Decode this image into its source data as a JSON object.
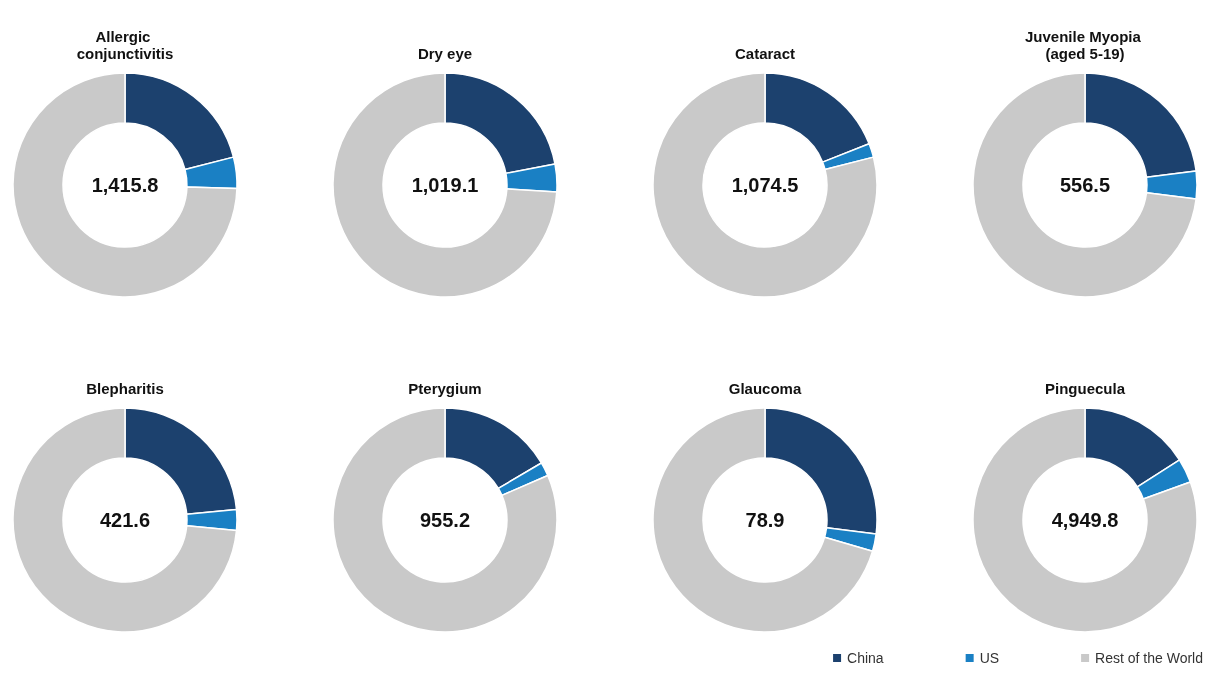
{
  "chart_data": [
    {
      "type": "donut",
      "title": "Allergic conjunctivitis",
      "categories": [
        null,
        null,
        null
      ],
      "values": [
        21,
        4.5,
        74.5
      ],
      "colors": [
        "#1c416e",
        "#1a80c4",
        "#c9c9c9"
      ],
      "annotations": [
        "1,415.8"
      ],
      "legend": false
    },
    {
      "type": "donut",
      "title": "Dry eye",
      "categories": [
        null,
        null,
        null
      ],
      "values": [
        22,
        4,
        74
      ],
      "colors": [
        "#1c416e",
        "#1a80c4",
        "#c9c9c9"
      ],
      "annotations": [
        "1,019.1"
      ],
      "legend": false
    },
    {
      "type": "donut",
      "title": "Cataract",
      "categories": [
        null,
        null,
        null
      ],
      "values": [
        19,
        2,
        79
      ],
      "colors": [
        "#1c416e",
        "#1a80c4",
        "#c9c9c9"
      ],
      "annotations": [
        "1,074.5"
      ],
      "legend": false
    },
    {
      "type": "donut",
      "title": "Juvenile Myopia (aged 5-19)",
      "categories": [
        null,
        null,
        null
      ],
      "values": [
        23,
        4,
        73
      ],
      "colors": [
        "#1c416e",
        "#1a80c4",
        "#c9c9c9"
      ],
      "annotations": [
        "556.5"
      ],
      "legend": false
    },
    {
      "type": "donut",
      "title": "Blepharitis",
      "categories": [
        null,
        null,
        null
      ],
      "values": [
        23.5,
        3,
        73.5
      ],
      "colors": [
        "#1c416e",
        "#1a80c4",
        "#c9c9c9"
      ],
      "annotations": [
        "421.6"
      ],
      "legend": false
    },
    {
      "type": "donut",
      "title": "Pterygium",
      "categories": [
        null,
        null,
        null
      ],
      "values": [
        16.5,
        2,
        81.5
      ],
      "colors": [
        "#1c416e",
        "#1a80c4",
        "#c9c9c9"
      ],
      "annotations": [
        "955.2"
      ],
      "legend": false
    },
    {
      "type": "donut",
      "title": "Glaucoma",
      "categories": [
        null,
        null,
        null
      ],
      "values": [
        27,
        2.5,
        70.5
      ],
      "colors": [
        "#1c416e",
        "#1a80c4",
        "#c9c9c9"
      ],
      "annotations": [
        "78.9"
      ],
      "legend": false
    },
    {
      "type": "donut",
      "title": "Pinguecula",
      "categories": [
        "China",
        "US",
        "Rest of the World"
      ],
      "values": [
        16,
        3.5,
        80.5
      ],
      "colors": [
        "#1c416e",
        "#1a80c4",
        "#c9c9c9"
      ],
      "annotations": [
        "4,949.8"
      ],
      "legend": "bottom"
    }
  ]
}
